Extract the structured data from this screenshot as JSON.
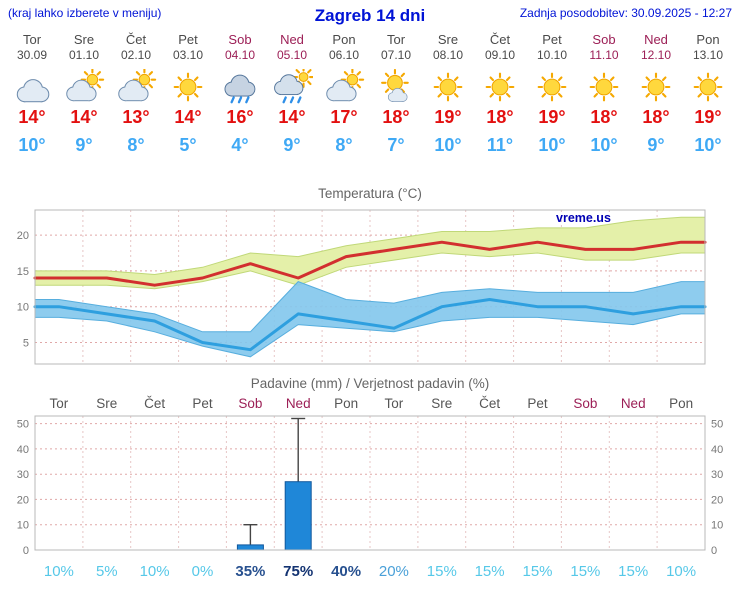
{
  "header": {
    "left_note": "(kraj lahko izberete v meniju)",
    "title": "Zagreb 14 dni",
    "updated": "Zadnja posodobitev: 30.09.2025 - 12:27"
  },
  "colors": {
    "header_blue": "#0013d6",
    "tmax_red": "#e31010",
    "tmin_blue": "#3fa9f5",
    "weekend_red": "#9c1f56",
    "bar_blue": "#1f87d8"
  },
  "forecast_days": [
    {
      "day": "Tor",
      "date": "30.09",
      "icon": "cloudy",
      "tmax": "14°",
      "tmin": "10°",
      "weekend": false
    },
    {
      "day": "Sre",
      "date": "01.10",
      "icon": "partly",
      "tmax": "14°",
      "tmin": "9°",
      "weekend": false
    },
    {
      "day": "Čet",
      "date": "02.10",
      "icon": "partly",
      "tmax": "13°",
      "tmin": "8°",
      "weekend": false
    },
    {
      "day": "Pet",
      "date": "03.10",
      "icon": "sunny",
      "tmax": "14°",
      "tmin": "5°",
      "weekend": false
    },
    {
      "day": "Sob",
      "date": "04.10",
      "icon": "rain",
      "tmax": "16°",
      "tmin": "4°",
      "weekend": true
    },
    {
      "day": "Ned",
      "date": "05.10",
      "icon": "rain-sun",
      "tmax": "14°",
      "tmin": "9°",
      "weekend": true
    },
    {
      "day": "Pon",
      "date": "06.10",
      "icon": "partly",
      "tmax": "17°",
      "tmin": "8°",
      "weekend": false
    },
    {
      "day": "Tor",
      "date": "07.10",
      "icon": "mostly-sunny",
      "tmax": "18°",
      "tmin": "7°",
      "weekend": false
    },
    {
      "day": "Sre",
      "date": "08.10",
      "icon": "sunny",
      "tmax": "19°",
      "tmin": "10°",
      "weekend": false
    },
    {
      "day": "Čet",
      "date": "09.10",
      "icon": "sunny",
      "tmax": "18°",
      "tmin": "11°",
      "weekend": false
    },
    {
      "day": "Pet",
      "date": "10.10",
      "icon": "sunny",
      "tmax": "19°",
      "tmin": "10°",
      "weekend": false
    },
    {
      "day": "Sob",
      "date": "11.10",
      "icon": "sunny",
      "tmax": "18°",
      "tmin": "10°",
      "weekend": true
    },
    {
      "day": "Ned",
      "date": "12.10",
      "icon": "sunny",
      "tmax": "18°",
      "tmin": "9°",
      "weekend": true
    },
    {
      "day": "Pon",
      "date": "13.10",
      "icon": "sunny",
      "tmax": "19°",
      "tmin": "10°",
      "weekend": false
    }
  ],
  "chart_data": [
    {
      "type": "line",
      "title": "Temperatura (°C)",
      "categories": [
        "Tor",
        "Sre",
        "Čet",
        "Pet",
        "Sob",
        "Ned",
        "Pon",
        "Tor",
        "Sre",
        "Čet",
        "Pet",
        "Sob",
        "Ned",
        "Pon"
      ],
      "series": [
        {
          "name": "max-temperature",
          "color": "#d22f2f",
          "values": [
            14,
            14,
            13,
            14,
            16,
            14,
            17,
            18,
            19,
            18,
            19,
            18,
            18,
            19
          ]
        },
        {
          "name": "min-temperature",
          "color": "#2e9fdf",
          "values": [
            10,
            9,
            8,
            5,
            4,
            9,
            8,
            7,
            10,
            11,
            10,
            10,
            9,
            10
          ]
        }
      ],
      "bands": [
        {
          "name": "max-temp-range",
          "color": "#e4f0a9",
          "edge": "#c0d878",
          "opacity": 1,
          "upper": [
            15,
            15,
            14.5,
            15.5,
            17.5,
            17,
            18.5,
            19.5,
            20.5,
            20.5,
            21,
            21,
            22,
            22.5
          ],
          "lower": [
            13,
            13,
            12.5,
            13.5,
            15,
            13,
            15.5,
            16.5,
            17.5,
            17,
            17.5,
            16.5,
            16.5,
            17.5
          ]
        },
        {
          "name": "min-temp-range",
          "color": "#82c6ec",
          "edge": "#57aede",
          "opacity": 0.9,
          "upper": [
            11,
            10,
            9,
            6.5,
            6.5,
            13.5,
            11,
            10.5,
            12,
            12.5,
            12,
            12,
            12,
            13.5
          ],
          "lower": [
            8.5,
            8,
            6.5,
            4.5,
            3,
            7.5,
            7,
            6.5,
            8,
            8.5,
            8.5,
            8,
            7.5,
            9
          ]
        }
      ],
      "yticks": [
        5,
        10,
        15,
        20
      ],
      "ylim": [
        2,
        23.5
      ],
      "grid": true,
      "watermark": "vreme.us"
    },
    {
      "type": "bar",
      "title": "Padavine (mm) / Verjetnost padavin (%)",
      "categories": [
        "Tor",
        "Sre",
        "Čet",
        "Pet",
        "Sob",
        "Ned",
        "Pon",
        "Tor",
        "Sre",
        "Čet",
        "Pet",
        "Sob",
        "Ned",
        "Pon"
      ],
      "weekend_flags": [
        false,
        false,
        false,
        false,
        true,
        true,
        false,
        false,
        false,
        false,
        false,
        true,
        true,
        false
      ],
      "values": [
        0,
        0,
        0,
        0,
        2,
        27,
        0,
        0,
        0,
        0,
        0,
        0,
        0,
        0
      ],
      "whisker_max": [
        0,
        0,
        0,
        0,
        10,
        52,
        0,
        0,
        0,
        0,
        0,
        0,
        0,
        0
      ],
      "probabilities": [
        "10%",
        "5%",
        "10%",
        "0%",
        "35%",
        "75%",
        "40%",
        "20%",
        "15%",
        "15%",
        "15%",
        "15%",
        "15%",
        "10%"
      ],
      "prob_colors": [
        "#56c8e8",
        "#56c8e8",
        "#56c8e8",
        "#56c8e8",
        "#27508f",
        "#123271",
        "#27508f",
        "#4aa0d8",
        "#56c8e8",
        "#56c8e8",
        "#56c8e8",
        "#56c8e8",
        "#56c8e8",
        "#56c8e8"
      ],
      "yticks": [
        0,
        10,
        20,
        30,
        40,
        50
      ],
      "ylim": [
        0,
        53
      ],
      "grid": true
    }
  ]
}
